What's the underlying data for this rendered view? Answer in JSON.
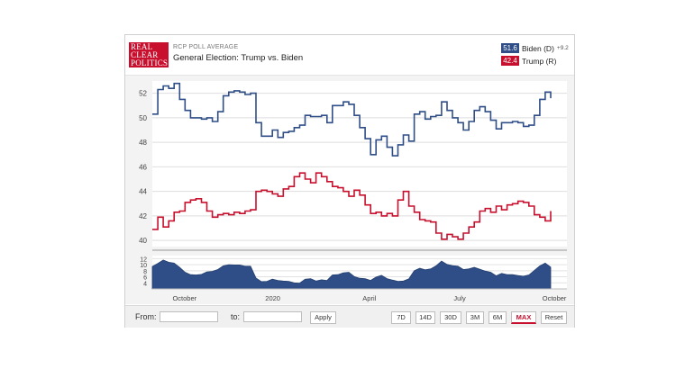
{
  "header": {
    "logo": [
      "REAL",
      "CLEAR",
      "POLITICS"
    ],
    "kicker": "RCP POLL AVERAGE",
    "title": "General Election: Trump vs. Biden"
  },
  "legend": {
    "biden": {
      "value": "51.6",
      "name": "Biden (D)",
      "spread": "+9.2",
      "color": "#2f4e87"
    },
    "trump": {
      "value": "42.4",
      "name": "Trump (R)",
      "color": "#c8102e"
    }
  },
  "chart_data": {
    "type": "line",
    "title": "General Election: Trump vs. Biden",
    "x_tick_labels": [
      "October",
      "2020",
      "April",
      "July",
      "October"
    ],
    "y_ticks": [
      40,
      42,
      44,
      46,
      48,
      50,
      52
    ],
    "ylim": [
      39.5,
      53
    ],
    "spread_ticks": [
      4,
      6,
      8,
      10,
      12
    ],
    "spread_ylim": [
      2,
      13
    ],
    "grid": true,
    "legend_position": "top-right",
    "series": [
      {
        "name": "Biden (D)",
        "color": "#2f4e87",
        "values": [
          50.3,
          52.3,
          52.6,
          52.4,
          52.8,
          51.5,
          50.6,
          50.0,
          50.0,
          49.9,
          50.0,
          49.7,
          50.5,
          51.8,
          52.1,
          52.2,
          52.1,
          51.9,
          52.0,
          49.6,
          48.5,
          48.5,
          49.0,
          48.4,
          48.8,
          48.9,
          49.2,
          49.4,
          50.2,
          50.1,
          50.1,
          50.2,
          49.6,
          51.0,
          51.0,
          51.3,
          51.1,
          50.2,
          49.2,
          48.3,
          47.0,
          48.2,
          48.5,
          47.6,
          46.9,
          47.8,
          48.6,
          48.1,
          50.3,
          50.5,
          49.9,
          50.1,
          50.2,
          51.3,
          50.6,
          50.0,
          49.6,
          49.0,
          49.7,
          50.6,
          50.9,
          50.5,
          49.8,
          49.1,
          49.6,
          49.6,
          49.7,
          49.6,
          49.3,
          49.4,
          50.2,
          51.5,
          52.1,
          51.6
        ]
      },
      {
        "name": "Trump (R)",
        "color": "#c8102e",
        "values": [
          40.9,
          41.9,
          41.1,
          41.6,
          42.3,
          42.4,
          43.1,
          43.3,
          43.4,
          43.1,
          42.4,
          41.9,
          42.1,
          42.2,
          42.1,
          42.3,
          42.2,
          42.4,
          42.5,
          44.0,
          44.1,
          44.0,
          43.8,
          43.6,
          44.2,
          44.4,
          45.2,
          45.5,
          45.0,
          44.7,
          45.5,
          45.2,
          44.8,
          44.4,
          44.3,
          44.0,
          43.6,
          44.1,
          43.7,
          42.9,
          42.2,
          42.3,
          42.0,
          42.2,
          42.0,
          43.3,
          44.0,
          42.8,
          42.3,
          41.7,
          41.6,
          41.5,
          40.6,
          40.1,
          40.5,
          40.3,
          40.1,
          40.6,
          41.1,
          41.5,
          42.4,
          42.6,
          42.3,
          42.8,
          42.5,
          42.9,
          43.0,
          43.2,
          43.1,
          42.8,
          42.1,
          41.9,
          41.6,
          42.4
        ]
      },
      {
        "name": "Spread",
        "color": "#2f4e87",
        "values": [
          9.4,
          10.4,
          11.5,
          10.8,
          10.5,
          9.1,
          7.5,
          6.7,
          6.6,
          6.8,
          7.6,
          7.8,
          8.4,
          9.6,
          10.0,
          9.9,
          9.9,
          9.5,
          9.5,
          5.6,
          4.4,
          4.5,
          5.2,
          4.8,
          4.6,
          4.5,
          4.0,
          3.9,
          5.2,
          5.4,
          4.6,
          5.0,
          4.8,
          6.6,
          6.7,
          7.3,
          7.5,
          6.1,
          5.5,
          5.4,
          4.8,
          5.9,
          6.5,
          5.4,
          4.9,
          4.5,
          4.6,
          5.3,
          8.0,
          8.8,
          8.3,
          8.6,
          9.6,
          11.2,
          10.1,
          9.7,
          9.5,
          8.4,
          8.6,
          9.1,
          8.5,
          7.9,
          7.5,
          6.3,
          7.1,
          6.7,
          6.7,
          6.4,
          6.2,
          6.6,
          8.1,
          9.6,
          10.5,
          9.2
        ]
      }
    ]
  },
  "footer": {
    "from_label": "From:",
    "from_value": "",
    "to_label": "to:",
    "to_value": "",
    "apply_label": "Apply",
    "ranges": [
      "7D",
      "14D",
      "30D",
      "3M",
      "6M",
      "MAX"
    ],
    "active_range": "MAX",
    "reset_label": "Reset"
  }
}
